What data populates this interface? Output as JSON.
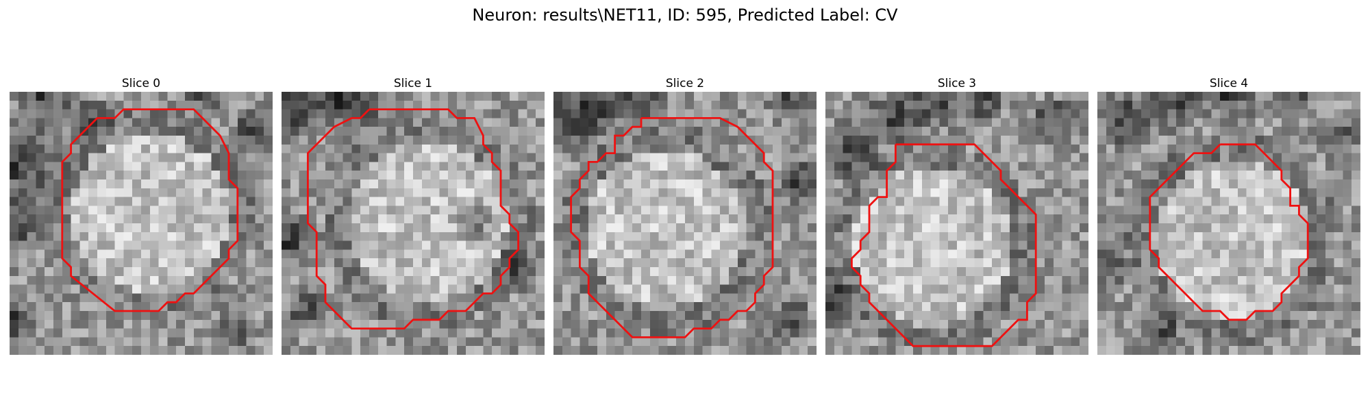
{
  "figure": {
    "title": "Neuron: results\\NET11, ID: 595, Predicted Label: CV",
    "contour_color": "#ee1111"
  },
  "panels": [
    {
      "title": "Slice 0",
      "seed": 11,
      "dark": [
        [
          1,
          8,
          6
        ],
        [
          4,
          1,
          4
        ],
        [
          9,
          3,
          3
        ],
        [
          1,
          15,
          4
        ],
        [
          0,
          26,
          4
        ],
        [
          22,
          0,
          3
        ],
        [
          28,
          4,
          3
        ],
        [
          26,
          27,
          3
        ]
      ],
      "contour": [
        [
          16,
          2
        ],
        [
          21,
          2
        ],
        [
          24,
          5
        ],
        [
          25,
          7
        ],
        [
          25,
          10
        ],
        [
          26,
          11
        ],
        [
          26,
          17
        ],
        [
          25,
          18
        ],
        [
          25,
          19
        ],
        [
          21,
          23
        ],
        [
          20,
          23
        ],
        [
          19,
          24
        ],
        [
          18,
          24
        ],
        [
          17,
          25
        ],
        [
          12,
          25
        ],
        [
          7,
          21
        ],
        [
          7,
          20
        ],
        [
          6,
          19
        ],
        [
          6,
          18
        ],
        [
          6,
          8
        ],
        [
          7,
          7
        ],
        [
          7,
          6
        ],
        [
          10,
          3
        ],
        [
          12,
          3
        ],
        [
          13,
          2
        ]
      ]
    },
    {
      "title": "Slice 1",
      "seed": 23,
      "dark": [
        [
          1,
          2,
          4
        ],
        [
          5,
          1,
          4
        ],
        [
          9,
          1,
          4
        ],
        [
          1,
          17,
          4
        ],
        [
          22,
          15,
          3
        ],
        [
          27,
          20,
          3
        ],
        [
          3,
          25,
          3
        ]
      ],
      "contour": [
        [
          10,
          2
        ],
        [
          19,
          2
        ],
        [
          20,
          3
        ],
        [
          22,
          3
        ],
        [
          23,
          5
        ],
        [
          23,
          6
        ],
        [
          24,
          7
        ],
        [
          24,
          8
        ],
        [
          25,
          9
        ],
        [
          25,
          13
        ],
        [
          26,
          14
        ],
        [
          26,
          15
        ],
        [
          27,
          16
        ],
        [
          27,
          18
        ],
        [
          26,
          19
        ],
        [
          26,
          20
        ],
        [
          25,
          21
        ],
        [
          25,
          22
        ],
        [
          24,
          23
        ],
        [
          23,
          23
        ],
        [
          22,
          24
        ],
        [
          21,
          25
        ],
        [
          19,
          25
        ],
        [
          18,
          26
        ],
        [
          15,
          26
        ],
        [
          14,
          27
        ],
        [
          8,
          27
        ],
        [
          6,
          25
        ],
        [
          5,
          24
        ],
        [
          5,
          22
        ],
        [
          4,
          21
        ],
        [
          4,
          16
        ],
        [
          3,
          15
        ],
        [
          3,
          7
        ],
        [
          4,
          6
        ],
        [
          5,
          5
        ],
        [
          6,
          4
        ],
        [
          8,
          3
        ],
        [
          9,
          3
        ]
      ]
    },
    {
      "title": "Slice 2",
      "seed": 37,
      "dark": [
        [
          2,
          3,
          5
        ],
        [
          6,
          1,
          4
        ],
        [
          10,
          1,
          3
        ],
        [
          27,
          1,
          3
        ],
        [
          28,
          10,
          3
        ],
        [
          27,
          26,
          3
        ]
      ],
      "contour": [
        [
          10,
          3
        ],
        [
          19,
          3
        ],
        [
          21,
          4
        ],
        [
          22,
          5
        ],
        [
          23,
          6
        ],
        [
          24,
          7
        ],
        [
          24,
          8
        ],
        [
          25,
          9
        ],
        [
          25,
          20
        ],
        [
          24,
          21
        ],
        [
          24,
          22
        ],
        [
          23,
          23
        ],
        [
          23,
          24
        ],
        [
          22,
          25
        ],
        [
          21,
          25
        ],
        [
          20,
          26
        ],
        [
          19,
          26
        ],
        [
          18,
          27
        ],
        [
          16,
          27
        ],
        [
          15,
          28
        ],
        [
          9,
          28
        ],
        [
          8,
          27
        ],
        [
          7,
          26
        ],
        [
          6,
          25
        ],
        [
          5,
          24
        ],
        [
          4,
          23
        ],
        [
          4,
          21
        ],
        [
          3,
          20
        ],
        [
          3,
          17
        ],
        [
          2,
          16
        ],
        [
          2,
          12
        ],
        [
          3,
          11
        ],
        [
          3,
          10
        ],
        [
          4,
          9
        ],
        [
          4,
          8
        ],
        [
          5,
          8
        ],
        [
          6,
          7
        ],
        [
          7,
          7
        ],
        [
          7,
          5
        ],
        [
          8,
          5
        ],
        [
          9,
          4
        ],
        [
          10,
          4
        ]
      ]
    },
    {
      "title": "Slice 3",
      "seed": 53,
      "dark": [
        [
          3,
          7,
          4
        ],
        [
          8,
          3,
          4
        ],
        [
          13,
          1,
          4
        ],
        [
          18,
          1,
          3
        ],
        [
          26,
          3,
          3
        ],
        [
          1,
          24,
          3
        ]
      ],
      "contour": [
        [
          8,
          6
        ],
        [
          17,
          6
        ],
        [
          18,
          7
        ],
        [
          20,
          9
        ],
        [
          20,
          10
        ],
        [
          21,
          11
        ],
        [
          22,
          12
        ],
        [
          23,
          13
        ],
        [
          24,
          14
        ],
        [
          24,
          23
        ],
        [
          23,
          24
        ],
        [
          23,
          26
        ],
        [
          22,
          26
        ],
        [
          21,
          27
        ],
        [
          19,
          29
        ],
        [
          10,
          29
        ],
        [
          9,
          28
        ],
        [
          8,
          27
        ],
        [
          7,
          26
        ],
        [
          6,
          25
        ],
        [
          5,
          24
        ],
        [
          5,
          23
        ],
        [
          4,
          22
        ],
        [
          4,
          21
        ],
        [
          3,
          20
        ],
        [
          3,
          19
        ],
        [
          4,
          18
        ],
        [
          4,
          17
        ],
        [
          5,
          16
        ],
        [
          5,
          13
        ],
        [
          6,
          12
        ],
        [
          7,
          12
        ],
        [
          7,
          9
        ],
        [
          8,
          8
        ],
        [
          8,
          7
        ]
      ]
    },
    {
      "title": "Slice 4",
      "seed": 71,
      "dark": [
        [
          3,
          3,
          4
        ],
        [
          9,
          1,
          4
        ],
        [
          15,
          0,
          4
        ],
        [
          22,
          1,
          3
        ],
        [
          27,
          5,
          3
        ],
        [
          7,
          27,
          3
        ],
        [
          1,
          20,
          3
        ]
      ],
      "contour": [
        [
          14,
          6
        ],
        [
          18,
          6
        ],
        [
          21,
          9
        ],
        [
          21,
          10
        ],
        [
          22,
          11
        ],
        [
          22,
          13
        ],
        [
          23,
          13
        ],
        [
          23,
          14
        ],
        [
          24,
          15
        ],
        [
          24,
          19
        ],
        [
          23,
          20
        ],
        [
          23,
          21
        ],
        [
          22,
          22
        ],
        [
          21,
          23
        ],
        [
          21,
          24
        ],
        [
          20,
          25
        ],
        [
          18,
          25
        ],
        [
          17,
          26
        ],
        [
          15,
          26
        ],
        [
          14,
          25
        ],
        [
          12,
          25
        ],
        [
          11,
          24
        ],
        [
          10,
          23
        ],
        [
          9,
          22
        ],
        [
          8,
          21
        ],
        [
          7,
          20
        ],
        [
          7,
          19
        ],
        [
          6,
          18
        ],
        [
          6,
          12
        ],
        [
          7,
          11
        ],
        [
          8,
          10
        ],
        [
          9,
          9
        ],
        [
          10,
          8
        ],
        [
          11,
          7
        ],
        [
          13,
          7
        ]
      ]
    }
  ]
}
